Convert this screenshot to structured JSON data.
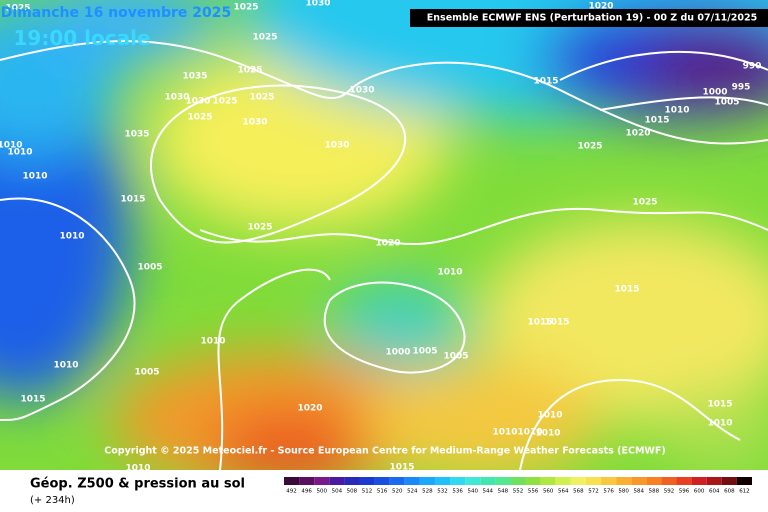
{
  "header": {
    "date": "Dimanche 16 novembre 2025",
    "time": "19:00 locale",
    "model": "Ensemble ECMWF ENS  (Perturbation 19)  - 00 Z du 07/11/2025"
  },
  "map": {
    "isobar_labels": [
      "1025",
      "1025",
      "1030",
      "1025",
      "1035",
      "1025",
      "1030",
      "1030",
      "1025",
      "1025",
      "1030",
      "1025",
      "1030",
      "1035",
      "1030",
      "1010",
      "1010",
      "1010",
      "1015",
      "1025",
      "1010",
      "1020",
      "1005",
      "1010",
      "1010",
      "1000",
      "1005",
      "1005",
      "1010",
      "1005",
      "1015",
      "1020",
      "1015",
      "1015",
      "1010",
      "1010",
      "1010",
      "1010",
      "1015",
      "1010",
      "1010",
      "1015",
      "1020",
      "1015",
      "1000",
      "1005",
      "990",
      "995",
      "1010",
      "1015",
      "1020",
      "1025",
      "1025",
      "1015"
    ]
  },
  "copyright": "Copyright © 2025 Meteociel.fr - Source European Centre for Medium-Range Weather Forecasts (ECMWF)",
  "footer": {
    "title": "Géop. Z500 & pression au sol",
    "lead": "(+ 234h)"
  },
  "legend": {
    "labels": [
      "492",
      "496",
      "500",
      "504",
      "508",
      "512",
      "516",
      "520",
      "524",
      "528",
      "532",
      "536",
      "540",
      "544",
      "548",
      "552",
      "556",
      "560",
      "564",
      "568",
      "572",
      "576",
      "580",
      "584",
      "588",
      "592",
      "596",
      "600",
      "604",
      "608",
      "612"
    ]
  }
}
